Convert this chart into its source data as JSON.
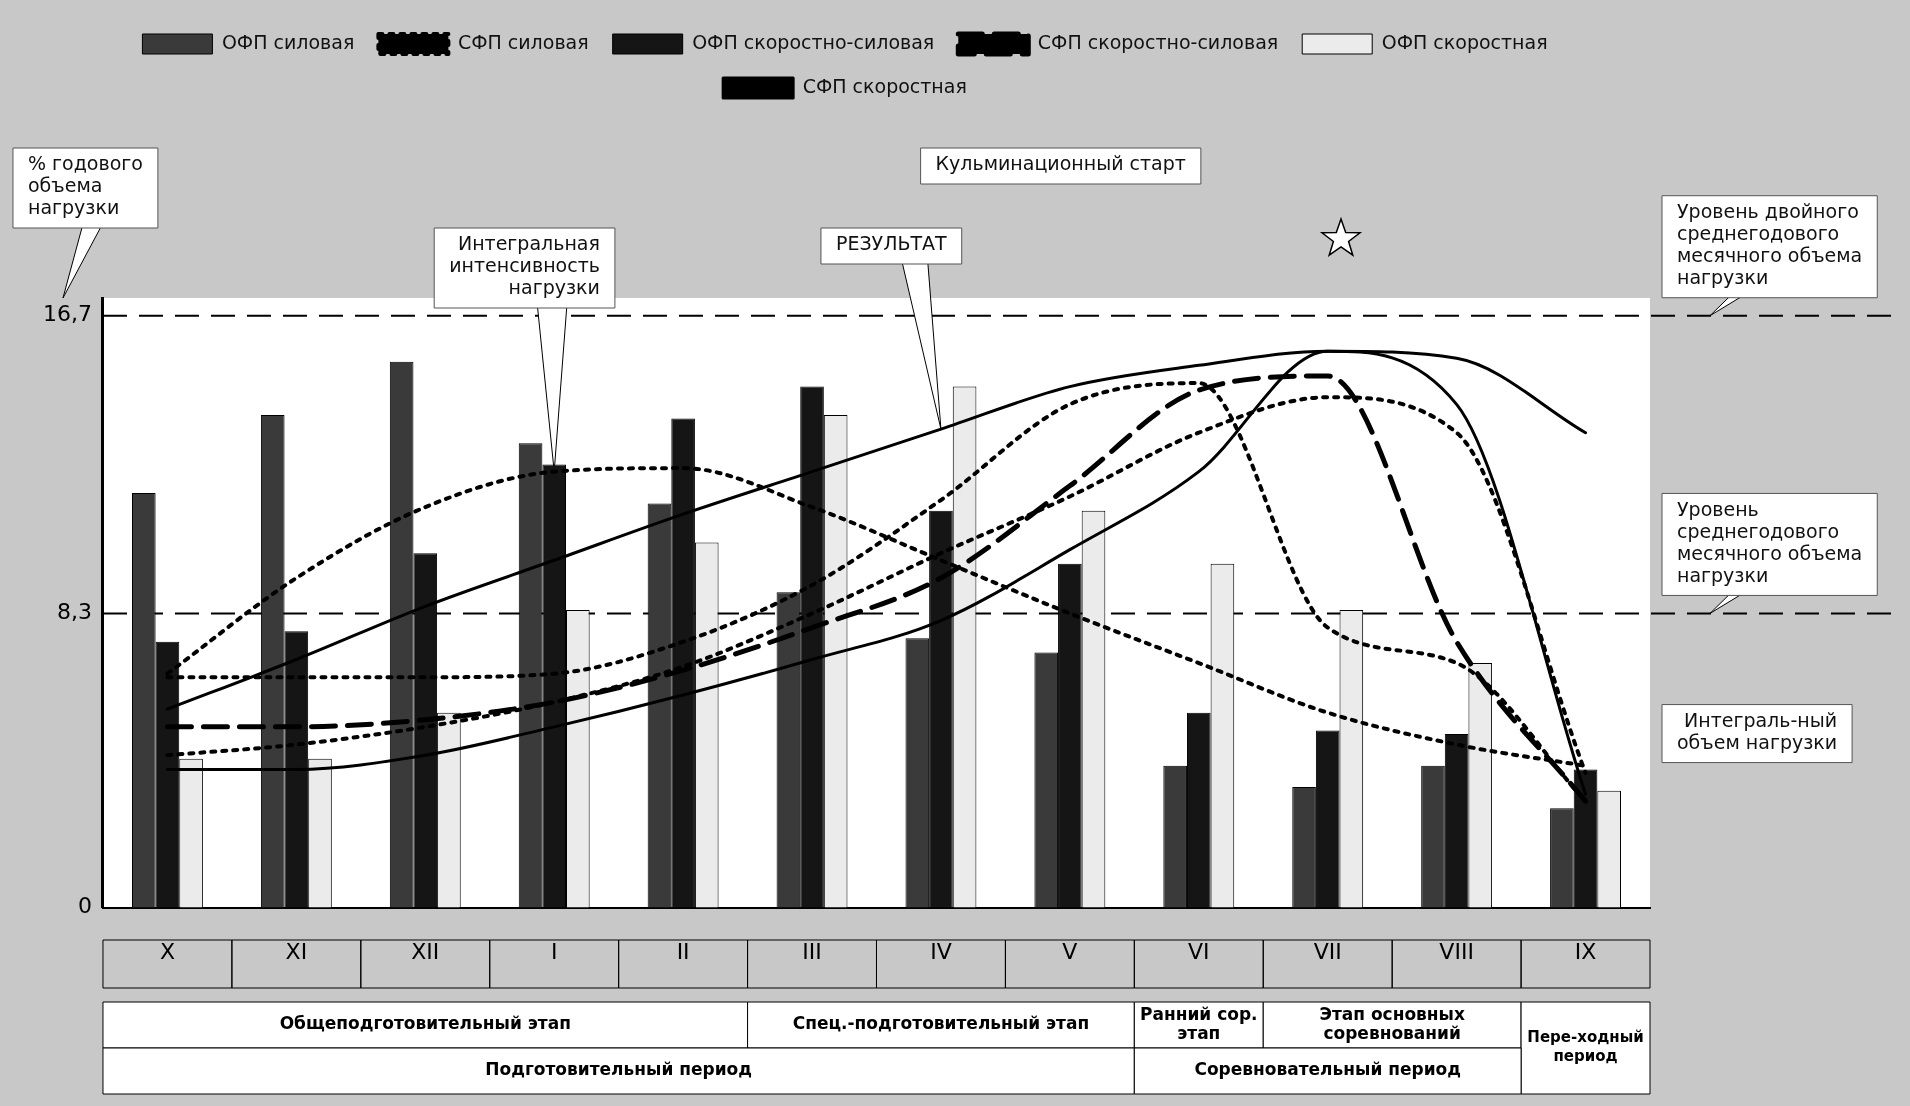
{
  "chart_data": {
    "type": "bar",
    "ylabel": "% годового объема нагрузки",
    "categories": [
      "X",
      "XI",
      "XII",
      "I",
      "II",
      "III",
      "IV",
      "V",
      "VI",
      "VII",
      "VIII",
      "IX"
    ],
    "series": [
      {
        "name": "ОФП силовая",
        "color": "#3a3a3a",
        "values": [
          11.7,
          13.9,
          15.4,
          13.1,
          11.4,
          8.9,
          7.6,
          7.2,
          4.0,
          3.4,
          4.0,
          2.8
        ]
      },
      {
        "type": "line",
        "name": "СФП силовая",
        "color": "#000000",
        "line_style": "dotted",
        "values": [
          6.5,
          6.5,
          6.5,
          6.6,
          7.5,
          9.1,
          11.5,
          14.2,
          14.8,
          7.9,
          6.9,
          3.0
        ]
      },
      {
        "name": "ОФП скоростно-силовая",
        "color": "#151515",
        "values": [
          7.5,
          7.8,
          10.0,
          12.5,
          13.8,
          14.7,
          11.2,
          9.7,
          5.5,
          5.0,
          4.9,
          3.9
        ]
      },
      {
        "type": "line",
        "name": "СФП скоростно-силовая",
        "color": "#000000",
        "line_style": "dashed",
        "values": [
          5.1,
          5.1,
          5.3,
          5.8,
          6.7,
          7.9,
          9.3,
          11.9,
          14.6,
          15.0,
          7.5,
          3.0
        ]
      },
      {
        "name": "ОФП скоростная",
        "color": "#ebebeb",
        "values": [
          4.2,
          4.2,
          5.5,
          8.4,
          10.3,
          13.9,
          14.7,
          11.2,
          9.7,
          8.4,
          6.9,
          3.3
        ]
      },
      {
        "type": "line",
        "name": "СФП скоростная",
        "color": "#000000",
        "line_style": "solid",
        "values": [
          3.9,
          3.9,
          4.3,
          5.1,
          6.0,
          7.0,
          8.1,
          10.1,
          12.3,
          15.7,
          14.2,
          3.2
        ]
      },
      {
        "type": "line",
        "color": "#000000",
        "line_style": "solid",
        "values": [
          5.6,
          7.0,
          8.5,
          9.8,
          11.1,
          12.3,
          13.5,
          14.7,
          15.3,
          15.7,
          15.5,
          13.4
        ]
      },
      {
        "type": "line",
        "color": "#000000",
        "line_style": "dotted",
        "values": [
          6.6,
          9.3,
          11.3,
          12.3,
          12.4,
          11.3,
          9.8,
          8.3,
          6.9,
          5.5,
          4.6,
          4.0
        ]
      },
      {
        "type": "line",
        "color": "#000000",
        "line_style": "dotted",
        "values": [
          4.3,
          4.6,
          5.1,
          5.8,
          6.8,
          8.3,
          10.0,
          11.6,
          13.4,
          14.4,
          13.4,
          3.8
        ]
      }
    ],
    "ylim": [
      0,
      17.2
    ],
    "yticks": [
      0,
      {
        "value": 8.3,
        "label": "8,3"
      },
      {
        "value": 16.7,
        "label": "16,7"
      }
    ],
    "ref_lines": [
      {
        "axis": "y",
        "value": 16.7,
        "label": "Уровень двойного среднегодового месячного объема нагрузки",
        "line_style": "dashed"
      },
      {
        "axis": "y",
        "value": 8.3,
        "label": "Уровень среднегодового месячного объема нагрузки",
        "line_style": "dashed"
      }
    ],
    "annotations": [
      "Кульминационный старт",
      "Интеграль-ный объем нагрузки",
      {
        "text": "Интегральная интенсивность нагрузки",
        "x": "I",
        "y": 12.3
      },
      {
        "text": "РЕЗУЛЬТАТ",
        "x": "IV",
        "y": 13.5
      },
      "Общеподготовительный этап",
      "Спец.-подготовительный этап",
      "Ранний сор. этап",
      "Этап основных соревнований",
      "Пере-ходный период",
      "Подготовительный период",
      "Соревновательный период"
    ],
    "legend": "top",
    "marker": "none",
    "grid": false
  }
}
